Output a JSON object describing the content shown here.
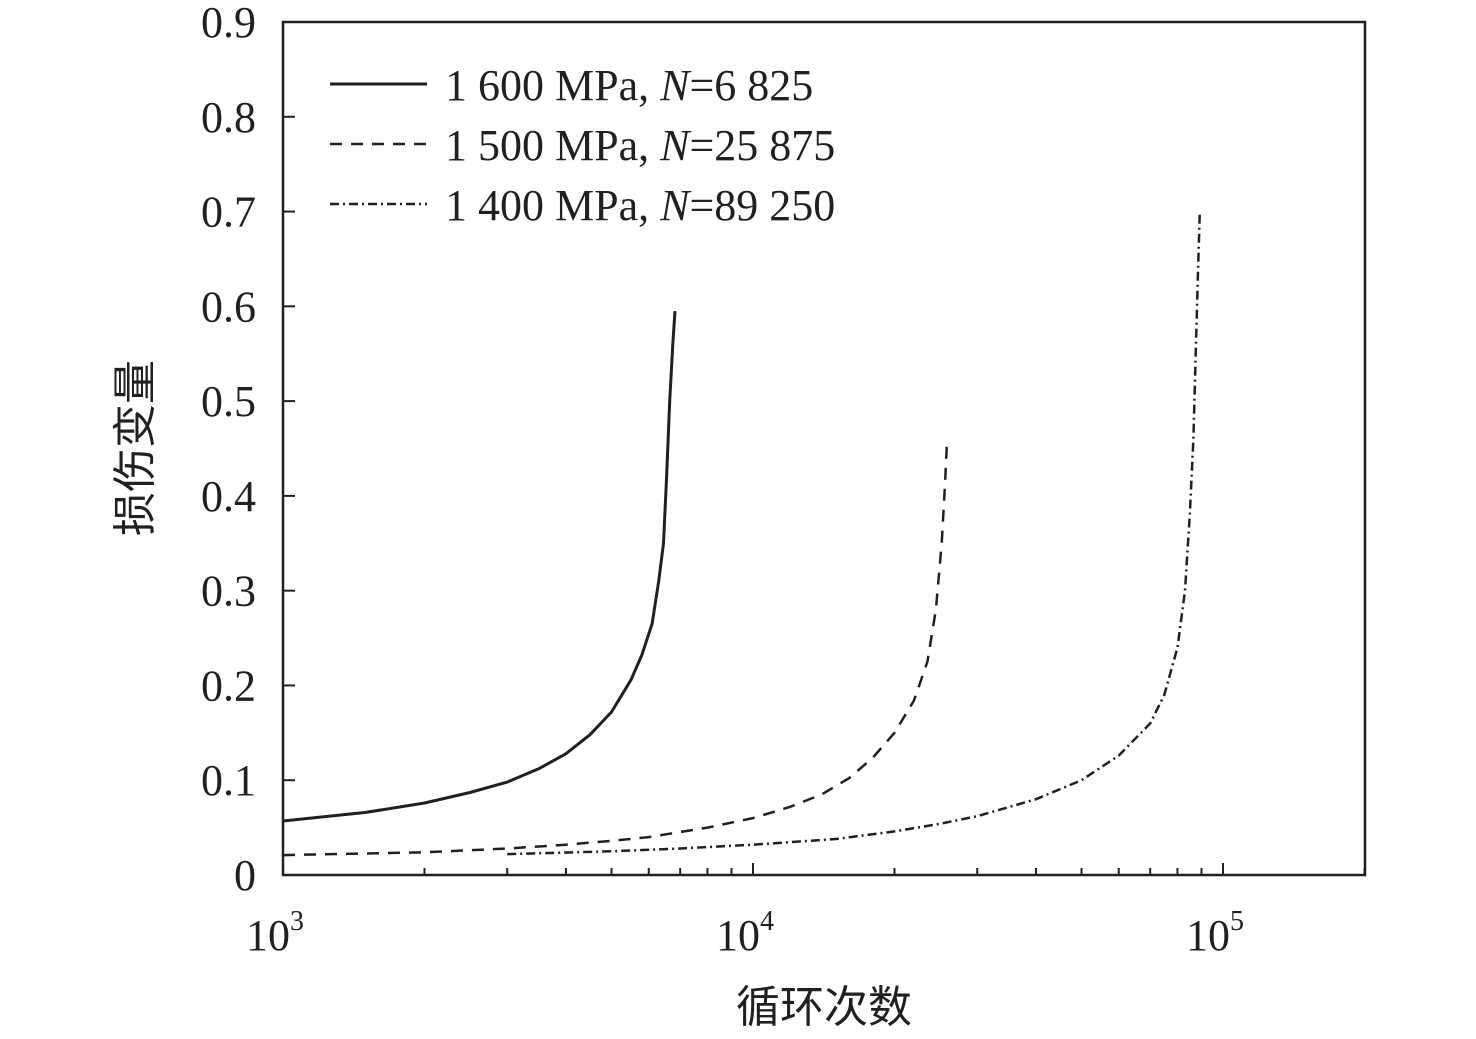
{
  "chart_data": {
    "type": "line",
    "title": "",
    "xlabel": "循环次数",
    "ylabel": "损伤变量",
    "x_scale": "log",
    "xlim": [
      1000,
      200000
    ],
    "ylim": [
      0,
      0.9
    ],
    "grid": false,
    "legend_position": "top-left",
    "x_ticks": [
      {
        "value": 1000,
        "base": "10",
        "exp": "3"
      },
      {
        "value": 10000,
        "base": "10",
        "exp": "4"
      },
      {
        "value": 100000,
        "base": "10",
        "exp": "5"
      }
    ],
    "y_ticks": [
      {
        "value": 0,
        "label": "0"
      },
      {
        "value": 0.1,
        "label": "0.1"
      },
      {
        "value": 0.2,
        "label": "0.2"
      },
      {
        "value": 0.3,
        "label": "0.3"
      },
      {
        "value": 0.4,
        "label": "0.4"
      },
      {
        "value": 0.5,
        "label": "0.5"
      },
      {
        "value": 0.6,
        "label": "0.6"
      },
      {
        "value": 0.7,
        "label": "0.7"
      },
      {
        "value": 0.8,
        "label": "0.8"
      },
      {
        "value": 0.9,
        "label": "0.9"
      }
    ],
    "series": [
      {
        "name": "1 600 MPa, N=6 825",
        "label_prefix": "1 600 MPa, ",
        "label_italic": "N",
        "label_suffix": "=6 825",
        "line_style": "solid",
        "color": "#231f20",
        "points": [
          [
            1000,
            0.057
          ],
          [
            1500,
            0.066
          ],
          [
            2000,
            0.076
          ],
          [
            2500,
            0.087
          ],
          [
            3000,
            0.098
          ],
          [
            3500,
            0.112
          ],
          [
            4000,
            0.128
          ],
          [
            4500,
            0.148
          ],
          [
            5000,
            0.172
          ],
          [
            5500,
            0.206
          ],
          [
            5800,
            0.232
          ],
          [
            6100,
            0.265
          ],
          [
            6300,
            0.31
          ],
          [
            6450,
            0.35
          ],
          [
            6550,
            0.42
          ],
          [
            6650,
            0.5
          ],
          [
            6750,
            0.56
          ],
          [
            6825,
            0.595
          ]
        ]
      },
      {
        "name": "1 500 MPa, N=25 875",
        "label_prefix": "1 500 MPa, ",
        "label_italic": "N",
        "label_suffix": "=25 875",
        "line_style": "dashed",
        "color": "#231f20",
        "points": [
          [
            1000,
            0.021
          ],
          [
            2000,
            0.024
          ],
          [
            3000,
            0.028
          ],
          [
            4000,
            0.032
          ],
          [
            5000,
            0.036
          ],
          [
            6000,
            0.04
          ],
          [
            8000,
            0.05
          ],
          [
            10000,
            0.06
          ],
          [
            12000,
            0.072
          ],
          [
            14000,
            0.085
          ],
          [
            16000,
            0.102
          ],
          [
            18000,
            0.124
          ],
          [
            20000,
            0.15
          ],
          [
            22000,
            0.184
          ],
          [
            23500,
            0.225
          ],
          [
            24500,
            0.28
          ],
          [
            25200,
            0.35
          ],
          [
            25600,
            0.41
          ],
          [
            25875,
            0.46
          ]
        ]
      },
      {
        "name": "1 400 MPa, N=89 250",
        "label_prefix": "1 400 MPa, ",
        "label_italic": "N",
        "label_suffix": "=89 250",
        "line_style": "dash-dot",
        "color": "#231f20",
        "points": [
          [
            3000,
            0.022
          ],
          [
            5000,
            0.025
          ],
          [
            7000,
            0.028
          ],
          [
            10000,
            0.032
          ],
          [
            15000,
            0.038
          ],
          [
            20000,
            0.046
          ],
          [
            25000,
            0.054
          ],
          [
            30000,
            0.062
          ],
          [
            40000,
            0.08
          ],
          [
            50000,
            0.1
          ],
          [
            60000,
            0.126
          ],
          [
            70000,
            0.16
          ],
          [
            75000,
            0.19
          ],
          [
            80000,
            0.24
          ],
          [
            83000,
            0.3
          ],
          [
            85000,
            0.38
          ],
          [
            86500,
            0.46
          ],
          [
            87500,
            0.55
          ],
          [
            88500,
            0.64
          ],
          [
            89250,
            0.7
          ]
        ]
      }
    ]
  }
}
